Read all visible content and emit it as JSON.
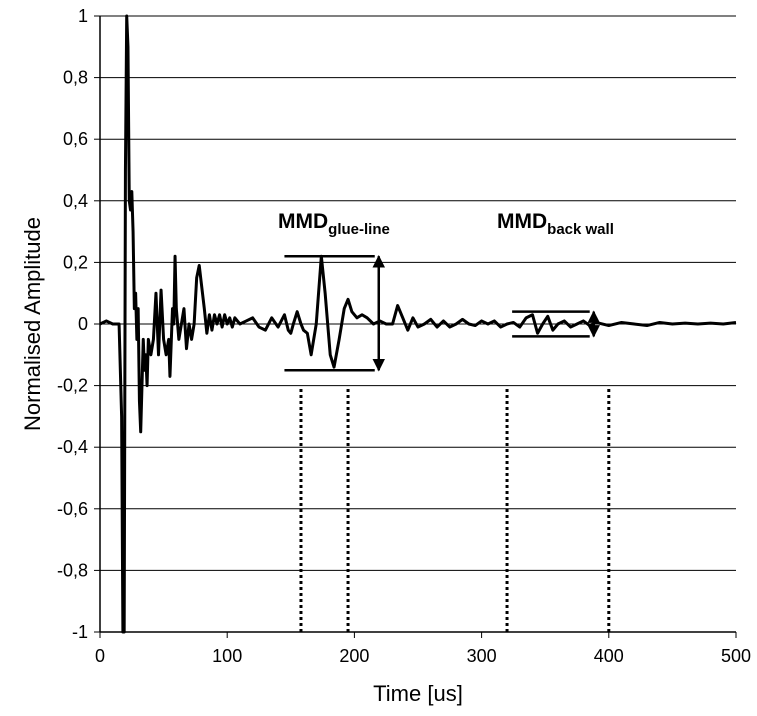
{
  "chart_data": {
    "type": "line",
    "xlabel": "Time [us]",
    "ylabel": "Normalised Amplitude",
    "color": "#000000",
    "grid": true,
    "xlim": [
      0,
      500
    ],
    "xticks": [
      0,
      100,
      200,
      300,
      400,
      500
    ],
    "ylim": [
      -1,
      1
    ],
    "yticks": [
      -1,
      {
        "value": -0.8,
        "label": "-0,8"
      },
      {
        "value": -0.6,
        "label": "-0,6"
      },
      {
        "value": -0.4,
        "label": "-0,4"
      },
      {
        "value": -0.2,
        "label": "-0,2"
      },
      0,
      {
        "value": 0.2,
        "label": "0,2"
      },
      {
        "value": 0.4,
        "label": "0,4"
      },
      {
        "value": 0.6,
        "label": "0,6"
      },
      {
        "value": 0.8,
        "label": "0,8"
      },
      1
    ],
    "x": [
      0,
      5,
      10,
      15,
      17,
      18,
      19,
      20,
      21,
      22,
      23,
      24,
      25,
      26,
      27,
      28,
      29,
      30,
      31,
      32,
      33,
      34,
      35,
      36,
      37,
      38,
      40,
      42,
      44,
      45,
      46,
      48,
      50,
      52,
      54,
      55,
      57,
      58,
      59,
      60,
      62,
      64,
      66,
      68,
      70,
      72,
      74,
      76,
      78,
      80,
      82,
      84,
      86,
      88,
      90,
      92,
      94,
      96,
      98,
      100,
      102,
      104,
      106,
      110,
      115,
      120,
      125,
      130,
      135,
      140,
      145,
      148,
      150,
      152,
      155,
      158,
      160,
      163,
      166,
      170,
      174,
      177,
      181,
      184,
      188,
      192,
      195,
      198,
      202,
      206,
      210,
      215,
      220,
      225,
      230,
      234,
      238,
      242,
      246,
      250,
      255,
      260,
      265,
      270,
      275,
      280,
      285,
      290,
      295,
      300,
      305,
      310,
      315,
      320,
      325,
      330,
      335,
      340,
      344,
      348,
      352,
      356,
      360,
      365,
      370,
      375,
      380,
      385,
      390,
      400,
      410,
      420,
      430,
      440,
      450,
      460,
      470,
      480,
      490,
      500
    ],
    "values": [
      0,
      0.01,
      0,
      0,
      -0.3,
      -1,
      -1,
      0.5,
      1,
      0.9,
      0.4,
      0.37,
      0.43,
      0.3,
      0.05,
      0.1,
      -0.05,
      0.05,
      -0.25,
      -0.35,
      -0.2,
      -0.05,
      -0.15,
      -0.1,
      -0.2,
      -0.05,
      -0.1,
      -0.05,
      0.1,
      0,
      -0.1,
      0.11,
      -0.05,
      -0.1,
      -0.05,
      -0.17,
      0.05,
      0,
      0.22,
      0.05,
      -0.05,
      0,
      0.05,
      -0.08,
      0,
      -0.05,
      0,
      0.15,
      0.19,
      0.12,
      0.05,
      -0.03,
      0.03,
      -0.02,
      0.03,
      0,
      0.03,
      -0.01,
      0.03,
      0,
      0.02,
      -0.01,
      0.02,
      0,
      0.01,
      0.02,
      -0.01,
      -0.02,
      0.02,
      -0.01,
      0.03,
      -0.02,
      -0.03,
      0,
      0.04,
      0,
      -0.02,
      -0.03,
      -0.1,
      0,
      0.22,
      0.1,
      -0.1,
      -0.14,
      -0.05,
      0.05,
      0.08,
      0.04,
      0.02,
      0.03,
      0.02,
      0,
      0.01,
      0,
      0,
      0.06,
      0.02,
      -0.02,
      0.02,
      -0.01,
      0,
      0.015,
      -0.01,
      0.01,
      -0.01,
      0,
      0.015,
      0,
      -0.005,
      0.01,
      0,
      0.01,
      -0.01,
      0,
      0.005,
      -0.01,
      0.02,
      0.03,
      -0.03,
      0,
      0.025,
      -0.02,
      0,
      0.01,
      -0.01,
      0,
      0.01,
      -0.005,
      0.005,
      -0.005,
      0.005,
      0,
      -0.005,
      0.005,
      0,
      0.003,
      0,
      0.003,
      0,
      0.005
    ],
    "annotations": [
      {
        "text": "MMD",
        "sub": "glue-line"
      },
      {
        "text": "MMD",
        "sub": "back wall"
      }
    ],
    "brackets": [
      {
        "x": [
          145,
          216
        ],
        "y": [
          -0.15,
          0.22
        ]
      },
      {
        "x": [
          324,
          385
        ],
        "y": [
          -0.04,
          0.04
        ]
      }
    ],
    "dotted_lines": [
      {
        "x": 158,
        "y": [
          -1,
          -0.2
        ]
      },
      {
        "x": 195,
        "y": [
          -1,
          -0.2
        ]
      },
      {
        "x": 320,
        "y": [
          -1,
          -0.2
        ]
      },
      {
        "x": 400,
        "y": [
          -1,
          -0.2
        ]
      }
    ]
  }
}
